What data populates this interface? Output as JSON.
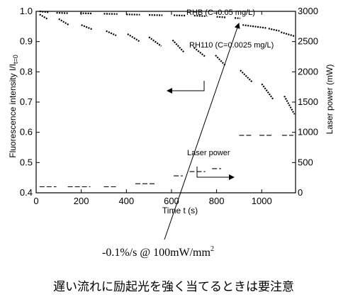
{
  "chart_data": {
    "type": "scatter",
    "title": "",
    "xlabel": "Time t (s)",
    "ylabel_left": "Fluorescence intensity I/I",
    "ylabel_left_subscript": "t=0",
    "ylabel_right": "Laser power (mW)",
    "xlim": [
      0,
      1150
    ],
    "ylim_left": [
      0.4,
      1.0
    ],
    "ylim_right": [
      0,
      3000
    ],
    "x_ticks": [
      "0",
      "200",
      "400",
      "600",
      "800",
      "1000"
    ],
    "x_tick_values": [
      0,
      200,
      400,
      600,
      800,
      1000
    ],
    "y_left_ticks": [
      "0.4",
      "0.5",
      "0.6",
      "0.7",
      "0.8",
      "0.9",
      "1.0"
    ],
    "y_left_tick_values": [
      0.4,
      0.5,
      0.6,
      0.7,
      0.8,
      0.9,
      1.0
    ],
    "y_right_ticks": [
      "0",
      "500",
      "1000",
      "1500",
      "2000",
      "2500",
      "3000"
    ],
    "y_right_tick_values": [
      0,
      500,
      1000,
      1500,
      2000,
      2500,
      3000
    ],
    "grid": false,
    "series": [
      {
        "name": "RHB (C=0.05 mg/L)",
        "axis": "left",
        "color": "#000000",
        "segments": [
          [
            [
              15,
              1.0
            ],
            [
              55,
              0.997
            ]
          ],
          [
            [
              90,
              0.995
            ],
            [
              140,
              0.994
            ]
          ],
          [
            [
              195,
              0.994
            ],
            [
              250,
              0.993
            ]
          ],
          [
            [
              300,
              0.992
            ],
            [
              360,
              0.991
            ]
          ],
          [
            [
              400,
              0.99
            ],
            [
              460,
              0.989
            ]
          ],
          [
            [
              500,
              0.988
            ],
            [
              560,
              0.987
            ]
          ],
          [
            [
              610,
              0.987
            ],
            [
              660,
              0.986
            ]
          ],
          [
            [
              700,
              0.986
            ],
            [
              750,
              0.984
            ]
          ],
          [
            [
              800,
              0.982
            ],
            [
              840,
              0.98
            ]
          ],
          [
            [
              880,
              0.978
            ],
            [
              905,
              0.977
            ]
          ],
          [
            [
              915,
              0.955
            ],
            [
              1020,
              0.945
            ]
          ],
          [
            [
              1030,
              0.943
            ],
            [
              1080,
              0.935
            ]
          ],
          [
            [
              1085,
              0.931
            ],
            [
              1145,
              0.918
            ]
          ]
        ]
      },
      {
        "name": "RH110 (C=0.0025 mg/L)",
        "axis": "left",
        "color": "#000000",
        "segments": [
          [
            [
              15,
              0.99
            ],
            [
              50,
              0.975
            ]
          ],
          [
            [
              100,
              0.975
            ],
            [
              145,
              0.955
            ]
          ],
          [
            [
              200,
              0.955
            ],
            [
              250,
              0.94
            ]
          ],
          [
            [
              310,
              0.935
            ],
            [
              355,
              0.92
            ]
          ],
          [
            [
              405,
              0.925
            ],
            [
              460,
              0.9
            ]
          ],
          [
            [
              500,
              0.915
            ],
            [
              555,
              0.885
            ]
          ],
          [
            [
              605,
              0.905
            ],
            [
              655,
              0.865
            ]
          ],
          [
            [
              700,
              0.88
            ],
            [
              750,
              0.85
            ]
          ],
          [
            [
              795,
              0.855
            ],
            [
              840,
              0.82
            ]
          ],
          [
            [
              905,
              0.805
            ],
            [
              960,
              0.765
            ]
          ],
          [
            [
              1000,
              0.76
            ],
            [
              1050,
              0.71
            ]
          ],
          [
            [
              1100,
              0.72
            ],
            [
              1145,
              0.66
            ]
          ]
        ]
      },
      {
        "name": "Laser power",
        "axis": "right",
        "color": "#000000",
        "segments": [
          [
            [
              15,
              100
            ],
            [
              90,
              100
            ]
          ],
          [
            [
              140,
              100
            ],
            [
              240,
              100
            ]
          ],
          [
            [
              300,
              100
            ],
            [
              360,
              100
            ]
          ],
          [
            [
              440,
              150
            ],
            [
              530,
              150
            ]
          ],
          [
            [
              610,
              280
            ],
            [
              650,
              280
            ]
          ],
          [
            [
              680,
              350
            ],
            [
              750,
              350
            ]
          ],
          [
            [
              780,
              400
            ],
            [
              820,
              400
            ]
          ],
          [
            [
              900,
              950
            ],
            [
              960,
              950
            ]
          ],
          [
            [
              990,
              950
            ],
            [
              1050,
              950
            ]
          ],
          [
            [
              1090,
              950
            ],
            [
              1140,
              950
            ]
          ]
        ]
      }
    ],
    "annotations": [
      {
        "text": "RHB (C=0.05 mg/L)"
      },
      {
        "text": "RH110 (C=0.0025 mg/L)"
      },
      {
        "text": "Laser power"
      }
    ],
    "rate_annotation": "-0.1%/s  @ 100mW/mm",
    "rate_annotation_superscript": "2"
  },
  "caption": "遅い流れに励起光を強く当てるときは要注意"
}
